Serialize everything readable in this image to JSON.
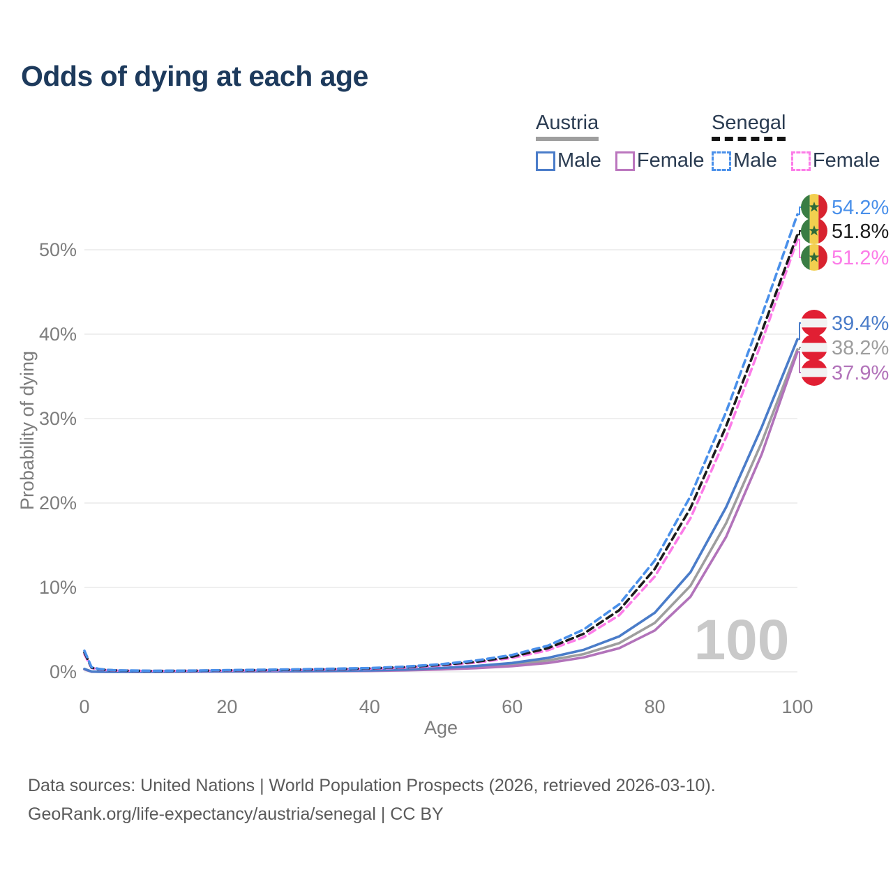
{
  "page": {
    "title": "Odds of dying at each age",
    "watermark": "100",
    "footer_line1": "Data sources: United Nations | World Population Prospects (2026, retrieved 2026-03-10).",
    "footer_line2": "GeoRank.org/life-expectancy/austria/senegal | CC BY"
  },
  "legend": {
    "groups": [
      {
        "name": "Austria",
        "underline_style": "solid",
        "underline_color": "#9e9e9e",
        "items": [
          {
            "label": "Male",
            "color": "#4a7cc9",
            "dash": false
          },
          {
            "label": "Female",
            "color": "#bb76be",
            "dash": false
          }
        ]
      },
      {
        "name": "Senegal",
        "underline_style": "dashed",
        "underline_color": "#141414",
        "items": [
          {
            "label": "Male",
            "color": "#4a90ea",
            "dash": true
          },
          {
            "label": "Female",
            "color": "#fc7ce8",
            "dash": true
          }
        ]
      }
    ]
  },
  "chart_data": {
    "type": "line",
    "title": "Odds of dying at each age",
    "xlabel": "Age",
    "ylabel": "Probability of dying",
    "xlim": [
      0,
      100
    ],
    "ylim_pct": [
      0,
      56
    ],
    "grid": "horizontal-only",
    "legend_position": "top-right",
    "x_ticks": [
      0,
      20,
      40,
      60,
      80,
      100
    ],
    "y_ticks": [
      {
        "label": "0%",
        "value": 0
      },
      {
        "label": "10%",
        "value": 10
      },
      {
        "label": "20%",
        "value": 20
      },
      {
        "label": "30%",
        "value": 30
      },
      {
        "label": "40%",
        "value": 40
      },
      {
        "label": "50%",
        "value": 50
      }
    ],
    "age_marker": "100",
    "x": [
      0,
      1,
      2,
      3,
      4,
      5,
      10,
      15,
      20,
      25,
      30,
      35,
      40,
      45,
      50,
      55,
      60,
      65,
      70,
      75,
      80,
      85,
      90,
      95,
      100
    ],
    "series": [
      {
        "key": "austria-both",
        "name": "Austria Both sexes",
        "color": "#9e9e9e",
        "dash": false,
        "flag": "austria",
        "end_label": "38.2%",
        "values": [
          0.32,
          0.025,
          0.018,
          0.012,
          0.01,
          0.01,
          0.01,
          0.03,
          0.05,
          0.06,
          0.07,
          0.1,
          0.14,
          0.22,
          0.36,
          0.55,
          0.85,
          1.35,
          2.1,
          3.4,
          5.8,
          10.2,
          17.6,
          27.2,
          38.2
        ]
      },
      {
        "key": "austria-female",
        "name": "Austria Female",
        "color": "#b273ba",
        "dash": false,
        "flag": "austria",
        "end_label": "37.9%",
        "values": [
          0.3,
          0.02,
          0.015,
          0.01,
          0.008,
          0.008,
          0.008,
          0.02,
          0.03,
          0.04,
          0.05,
          0.08,
          0.11,
          0.18,
          0.28,
          0.44,
          0.68,
          1.05,
          1.7,
          2.8,
          4.9,
          8.9,
          16.0,
          25.8,
          37.9
        ]
      },
      {
        "key": "austria-male",
        "name": "Austria Male",
        "color": "#4a7cc9",
        "dash": false,
        "flag": "austria",
        "end_label": "39.4%",
        "values": [
          0.35,
          0.03,
          0.02,
          0.015,
          0.01,
          0.01,
          0.01,
          0.04,
          0.07,
          0.08,
          0.09,
          0.12,
          0.17,
          0.27,
          0.45,
          0.7,
          1.05,
          1.65,
          2.6,
          4.2,
          7.0,
          11.8,
          19.5,
          29.0,
          39.4
        ]
      },
      {
        "key": "senegal-female",
        "name": "Senegal Female",
        "color": "#fc7ce8",
        "dash": true,
        "flag": "senegal",
        "end_label": "51.2%",
        "values": [
          2.1,
          0.46,
          0.3,
          0.2,
          0.16,
          0.14,
          0.1,
          0.12,
          0.15,
          0.18,
          0.23,
          0.3,
          0.37,
          0.5,
          0.74,
          1.1,
          1.65,
          2.55,
          4.1,
          6.7,
          11.3,
          18.2,
          27.8,
          39.1,
          51.2
        ]
      },
      {
        "key": "senegal-both",
        "name": "Senegal Both sexes",
        "color": "#1c1c1c",
        "dash": true,
        "flag": "senegal",
        "end_label": "51.8%",
        "values": [
          2.3,
          0.5,
          0.32,
          0.22,
          0.18,
          0.15,
          0.11,
          0.13,
          0.17,
          0.21,
          0.26,
          0.33,
          0.41,
          0.56,
          0.82,
          1.2,
          1.8,
          2.8,
          4.5,
          7.3,
          12.2,
          19.4,
          29.1,
          40.3,
          51.8
        ]
      },
      {
        "key": "senegal-male",
        "name": "Senegal Male",
        "color": "#4a90ea",
        "dash": true,
        "flag": "senegal",
        "end_label": "54.2%",
        "values": [
          2.5,
          0.55,
          0.35,
          0.25,
          0.2,
          0.17,
          0.12,
          0.15,
          0.2,
          0.25,
          0.3,
          0.37,
          0.45,
          0.62,
          0.9,
          1.35,
          2.0,
          3.1,
          5.0,
          8.0,
          13.2,
          20.8,
          30.8,
          42.2,
          54.2
        ]
      }
    ]
  },
  "colors": {
    "title": "#1d3a5c",
    "axis_text": "#7d7d7d",
    "gridline": "#eaeaea",
    "watermark": "#c9c9c9",
    "footer_text": "#5a5a5a"
  },
  "flags": {
    "senegal": {
      "green": "#3a7d44",
      "yellow": "#f2cf4f",
      "red": "#d8232f",
      "star": "#2f6b38"
    },
    "austria": {
      "red": "#e11f33",
      "white": "#f2f2f2"
    }
  }
}
